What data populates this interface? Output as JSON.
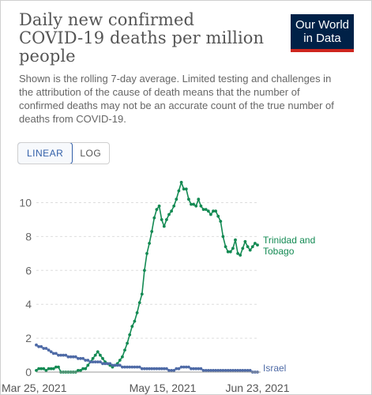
{
  "header": {
    "title_lines": [
      "Daily new confirmed",
      "COVID-19 deaths per million",
      "people"
    ],
    "subtitle": "Shown is the rolling 7-day average. Limited testing and challenges in the attribution of the cause of death means that the number of confirmed deaths may not be an accurate count of the true number of deaths from COVID-19."
  },
  "logo": {
    "line1": "Our World",
    "line2": "in Data"
  },
  "scale_toggle": {
    "linear_label": "LINEAR",
    "log_label": "LOG",
    "selected": "linear"
  },
  "colors": {
    "trinidad": "#138a53",
    "israel": "#4e6aa6",
    "logo_bg": "#002147",
    "logo_bar": "#ce261e"
  },
  "chart_data": {
    "type": "line",
    "title": "Daily new confirmed COVID-19 deaths per million people",
    "x_tick_labels": [
      "Mar 25, 2021",
      "May 15, 2021",
      "Jun 23, 2021"
    ],
    "x_range": [
      "2021-03-25",
      "2021-06-23"
    ],
    "ylim": [
      0,
      11.2
    ],
    "y_ticks": [
      0,
      2,
      4,
      6,
      8,
      10
    ],
    "grid": "horizontal-dashed",
    "x": [
      "2021-03-25",
      "2021-03-26",
      "2021-03-27",
      "2021-03-28",
      "2021-03-29",
      "2021-03-30",
      "2021-03-31",
      "2021-04-01",
      "2021-04-02",
      "2021-04-03",
      "2021-04-04",
      "2021-04-05",
      "2021-04-06",
      "2021-04-07",
      "2021-04-08",
      "2021-04-09",
      "2021-04-10",
      "2021-04-11",
      "2021-04-12",
      "2021-04-13",
      "2021-04-14",
      "2021-04-15",
      "2021-04-16",
      "2021-04-17",
      "2021-04-18",
      "2021-04-19",
      "2021-04-20",
      "2021-04-21",
      "2021-04-22",
      "2021-04-23",
      "2021-04-24",
      "2021-04-25",
      "2021-04-26",
      "2021-04-27",
      "2021-04-28",
      "2021-04-29",
      "2021-04-30",
      "2021-05-01",
      "2021-05-02",
      "2021-05-03",
      "2021-05-04",
      "2021-05-05",
      "2021-05-06",
      "2021-05-07",
      "2021-05-08",
      "2021-05-09",
      "2021-05-10",
      "2021-05-11",
      "2021-05-12",
      "2021-05-13",
      "2021-05-14",
      "2021-05-15",
      "2021-05-16",
      "2021-05-17",
      "2021-05-18",
      "2021-05-19",
      "2021-05-20",
      "2021-05-21",
      "2021-05-22",
      "2021-05-23",
      "2021-05-24",
      "2021-05-25",
      "2021-05-26",
      "2021-05-27",
      "2021-05-28",
      "2021-05-29",
      "2021-05-30",
      "2021-05-31",
      "2021-06-01",
      "2021-06-02",
      "2021-06-03",
      "2021-06-04",
      "2021-06-05",
      "2021-06-06",
      "2021-06-07",
      "2021-06-08",
      "2021-06-09",
      "2021-06-10",
      "2021-06-11",
      "2021-06-12",
      "2021-06-13",
      "2021-06-14",
      "2021-06-15",
      "2021-06-16",
      "2021-06-17",
      "2021-06-18",
      "2021-06-19",
      "2021-06-20",
      "2021-06-21",
      "2021-06-22",
      "2021-06-23"
    ],
    "series": [
      {
        "name": "Trinidad and Tobago",
        "color": "#138a53",
        "values": [
          0.1,
          0.2,
          0.2,
          0.2,
          0.1,
          0.2,
          0.2,
          0.2,
          0.3,
          0.3,
          0.0,
          0.0,
          0.0,
          0.0,
          0.0,
          0.0,
          0.0,
          0.1,
          0.1,
          0.2,
          0.2,
          0.4,
          0.6,
          0.8,
          1.0,
          1.2,
          1.0,
          0.8,
          0.6,
          0.5,
          0.4,
          0.3,
          0.4,
          0.5,
          0.7,
          0.9,
          1.3,
          1.7,
          2.2,
          2.7,
          3.0,
          3.5,
          4.1,
          4.6,
          6.0,
          7.0,
          7.6,
          8.3,
          9.1,
          9.6,
          9.8,
          9.0,
          8.6,
          9.0,
          9.3,
          9.5,
          9.8,
          10.2,
          10.7,
          11.2,
          10.8,
          10.8,
          10.2,
          9.9,
          9.9,
          9.8,
          10.2,
          9.8,
          9.6,
          9.6,
          9.5,
          9.3,
          9.5,
          9.5,
          9.2,
          8.9,
          8.0,
          7.4,
          7.1,
          7.1,
          7.3,
          7.8,
          7.0,
          6.9,
          7.3,
          7.7,
          7.4,
          7.2,
          7.4,
          7.6,
          7.5
        ]
      },
      {
        "name": "Israel",
        "color": "#4e6aa6",
        "values": [
          1.6,
          1.5,
          1.5,
          1.4,
          1.4,
          1.3,
          1.2,
          1.1,
          1.1,
          1.0,
          1.0,
          1.0,
          1.0,
          0.9,
          0.9,
          0.9,
          0.9,
          0.8,
          0.8,
          0.8,
          0.7,
          0.7,
          0.6,
          0.6,
          0.6,
          0.6,
          0.6,
          0.5,
          0.5,
          0.5,
          0.5,
          0.4,
          0.4,
          0.4,
          0.4,
          0.3,
          0.3,
          0.3,
          0.3,
          0.3,
          0.3,
          0.3,
          0.3,
          0.2,
          0.2,
          0.2,
          0.2,
          0.2,
          0.2,
          0.2,
          0.2,
          0.2,
          0.2,
          0.2,
          0.1,
          0.1,
          0.1,
          0.2,
          0.2,
          0.3,
          0.3,
          0.3,
          0.3,
          0.2,
          0.2,
          0.2,
          0.2,
          0.2,
          0.1,
          0.1,
          0.1,
          0.1,
          0.1,
          0.1,
          0.1,
          0.1,
          0.1,
          0.1,
          0.1,
          0.1,
          0.1,
          0.1,
          0.1,
          0.1,
          0.1,
          0.1,
          0.1,
          0.1,
          0.0,
          0.0,
          0.0
        ]
      }
    ]
  }
}
